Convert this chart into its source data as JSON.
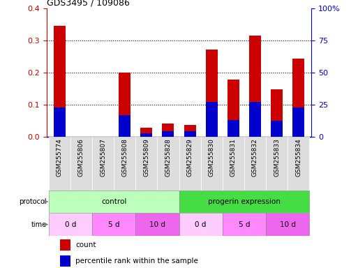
{
  "title": "GDS3495 / 109086",
  "samples": [
    "GSM255774",
    "GSM255806",
    "GSM255807",
    "GSM255808",
    "GSM255809",
    "GSM255828",
    "GSM255829",
    "GSM255830",
    "GSM255831",
    "GSM255832",
    "GSM255833",
    "GSM255834"
  ],
  "count_values": [
    0.345,
    0.0,
    0.0,
    0.2,
    0.027,
    0.04,
    0.037,
    0.27,
    0.177,
    0.315,
    0.148,
    0.242
  ],
  "percentile_values": [
    0.09,
    0.0,
    0.0,
    0.068,
    0.01,
    0.018,
    0.018,
    0.108,
    0.052,
    0.108,
    0.05,
    0.09
  ],
  "ylim_left": [
    0,
    0.4
  ],
  "ylim_right": [
    0,
    100
  ],
  "yticks_left": [
    0.0,
    0.1,
    0.2,
    0.3,
    0.4
  ],
  "yticks_right": [
    0,
    25,
    50,
    75,
    100
  ],
  "ytick_labels_right": [
    "0",
    "25",
    "50",
    "75",
    "100%"
  ],
  "bar_color": "#cc0000",
  "percentile_color": "#0000cc",
  "protocol_groups": [
    {
      "label": "control",
      "start": 0,
      "end": 5,
      "color": "#bbffbb"
    },
    {
      "label": "progerin expression",
      "start": 6,
      "end": 11,
      "color": "#44dd44"
    }
  ],
  "time_groups": [
    {
      "label": "0 d",
      "start": 0,
      "end": 1,
      "color": "#ffccff"
    },
    {
      "label": "5 d",
      "start": 2,
      "end": 3,
      "color": "#ff88ff"
    },
    {
      "label": "10 d",
      "start": 4,
      "end": 5,
      "color": "#ee66ee"
    },
    {
      "label": "0 d",
      "start": 6,
      "end": 7,
      "color": "#ffccff"
    },
    {
      "label": "5 d",
      "start": 8,
      "end": 9,
      "color": "#ff88ff"
    },
    {
      "label": "10 d",
      "start": 10,
      "end": 11,
      "color": "#ee66ee"
    }
  ],
  "legend_count_label": "count",
  "legend_pct_label": "percentile rank within the sample",
  "bar_width": 0.55,
  "sample_box_color": "#dddddd",
  "n_samples": 12
}
